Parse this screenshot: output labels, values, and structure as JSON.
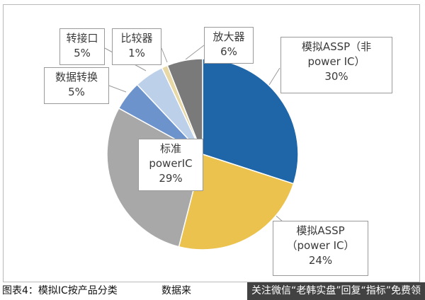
{
  "chart_data": {
    "type": "pie",
    "slices": [
      {
        "label": [
          "模拟ASSP（非",
          "power IC）"
        ],
        "value": 30,
        "pct": "30%",
        "color": "#1f66a9"
      },
      {
        "label": [
          "模拟ASSP",
          "（power IC）"
        ],
        "value": 24,
        "pct": "24%",
        "color": "#ecc24e"
      },
      {
        "label": [
          "标准",
          "powerIC"
        ],
        "value": 29,
        "pct": "29%",
        "color": "#a8a8a8"
      },
      {
        "label": [
          "数据转换"
        ],
        "value": 5,
        "pct": "5%",
        "color": "#6c93cc"
      },
      {
        "label": [
          "转接口"
        ],
        "value": 5,
        "pct": "5%",
        "color": "#bcd0ea"
      },
      {
        "label": [
          "比较器"
        ],
        "value": 1,
        "pct": "1%",
        "color": "#e7d8a6"
      },
      {
        "label": [
          "放大器"
        ],
        "value": 6,
        "pct": "6%",
        "color": "#7a7a7a"
      }
    ]
  },
  "caption": {
    "text": "图表4：模拟IC按产品分类",
    "suffix": "数据来"
  },
  "watermark": {
    "text": "关注微信“老韩实盘”回复“指标”免费领"
  }
}
